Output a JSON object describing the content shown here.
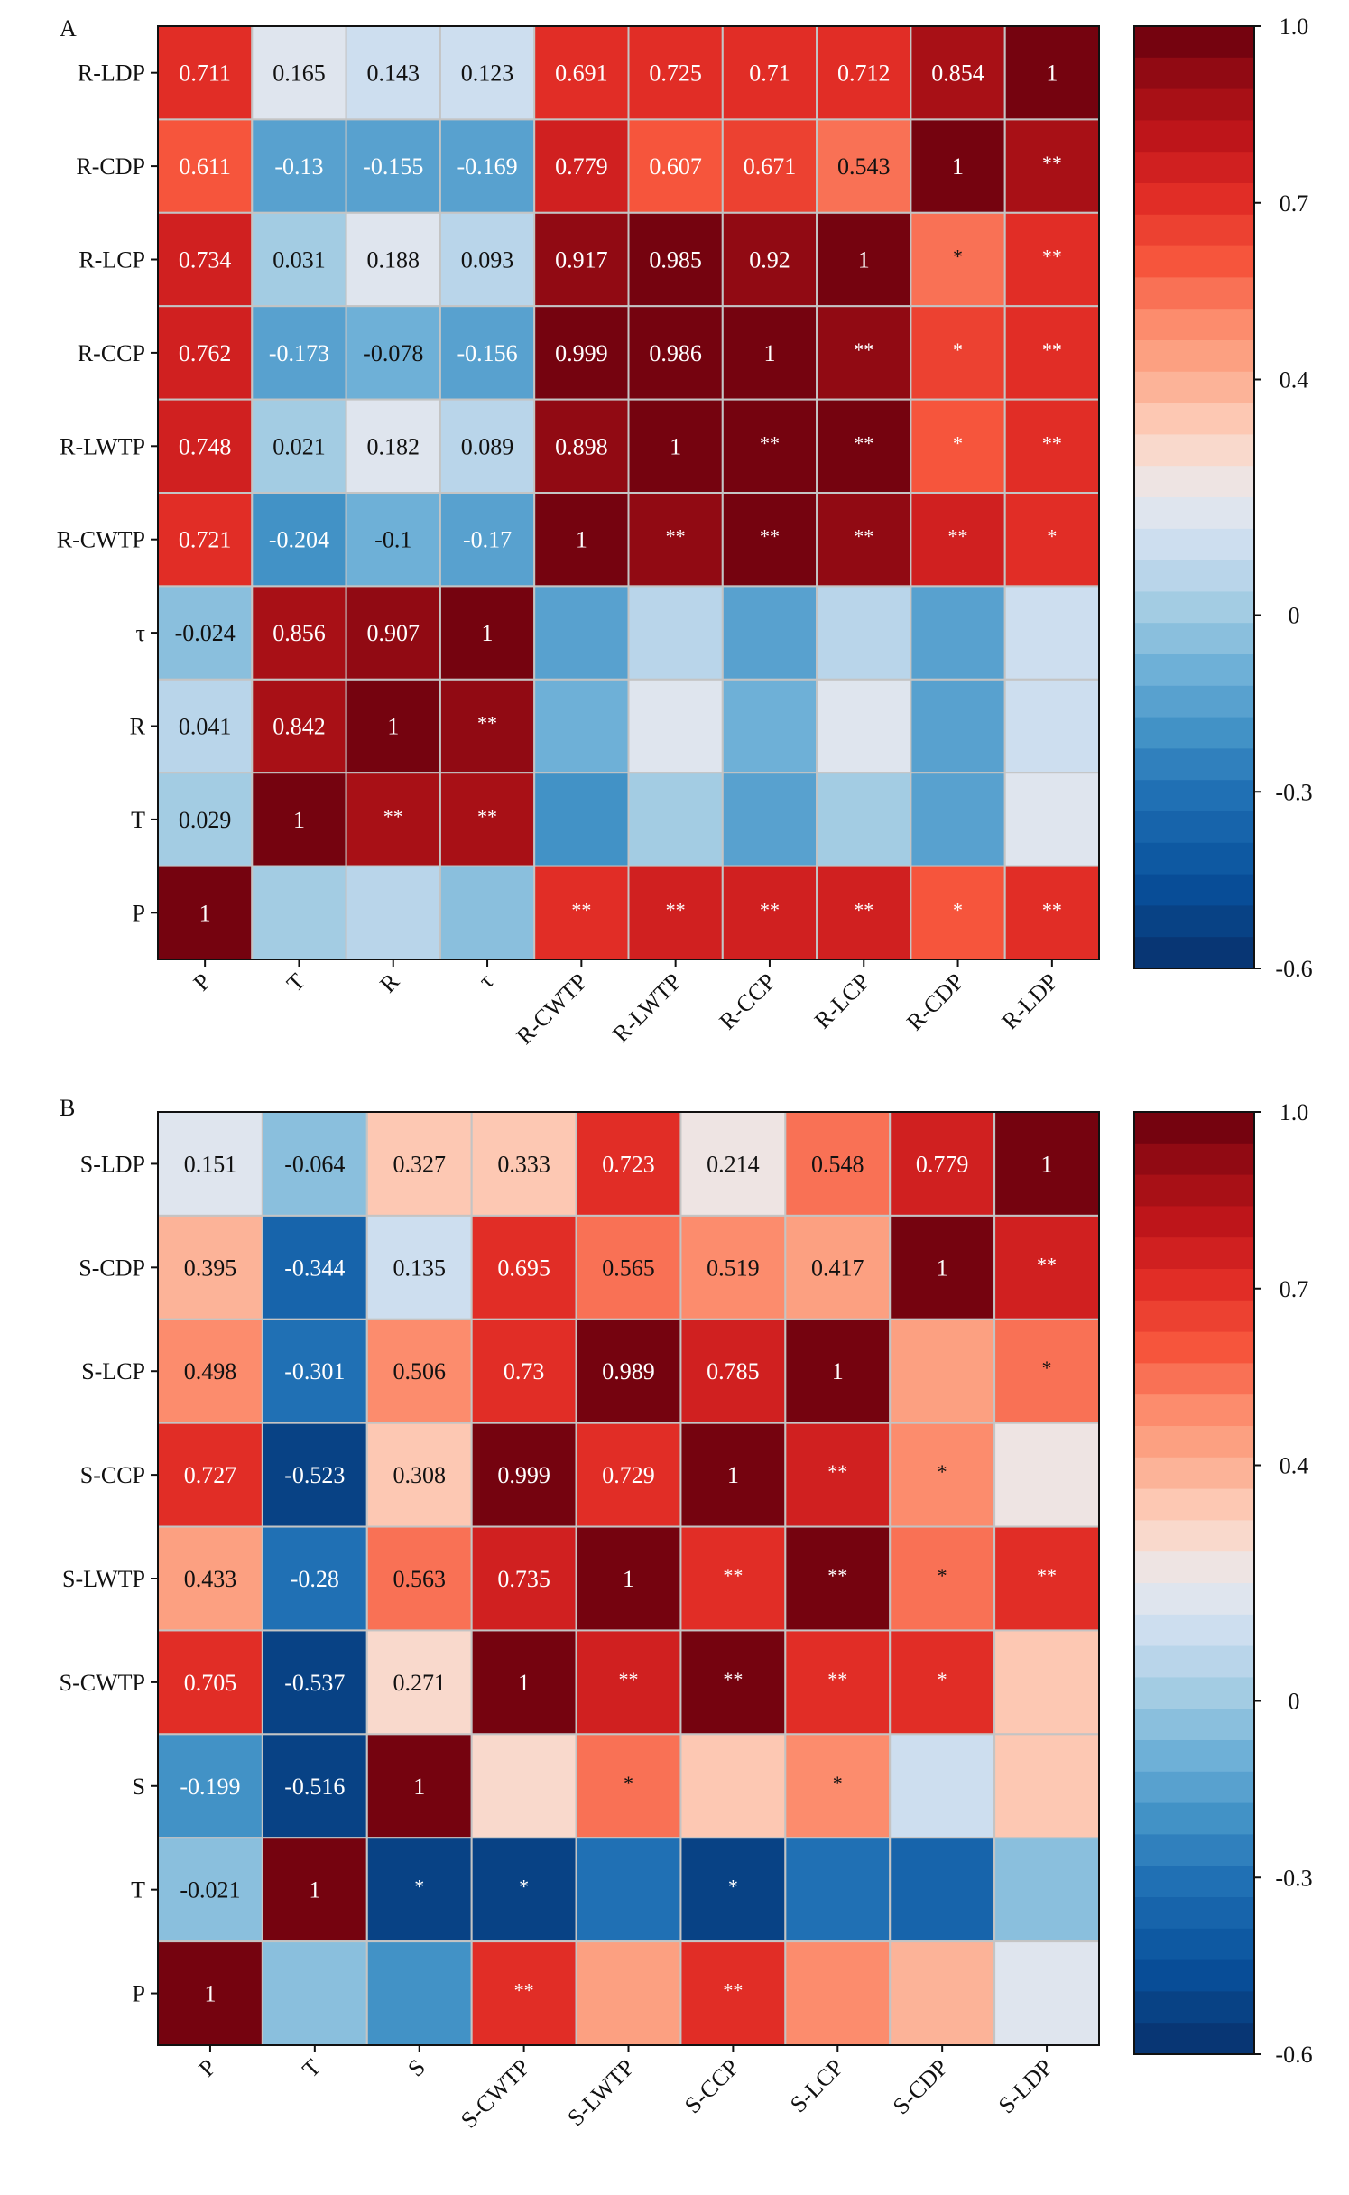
{
  "colorbar": {
    "min": -0.6,
    "max": 1.0,
    "steps": 30,
    "tick_labels": [
      "1.0",
      "0.7",
      "0.4",
      "0",
      "-0.3",
      "-0.6"
    ],
    "tick_values": [
      1.0,
      0.7,
      0.4,
      0.0,
      -0.3,
      -0.6
    ],
    "color_stops": [
      {
        "v": -0.6,
        "c": "#08306b"
      },
      {
        "v": -0.45,
        "c": "#08519c"
      },
      {
        "v": -0.3,
        "c": "#2171b5"
      },
      {
        "v": -0.2,
        "c": "#4292c6"
      },
      {
        "v": -0.1,
        "c": "#6baed6"
      },
      {
        "v": 0.0,
        "c": "#9ecae1"
      },
      {
        "v": 0.1,
        "c": "#c6dbef"
      },
      {
        "v": 0.2,
        "c": "#e8e9ee"
      },
      {
        "v": 0.3,
        "c": "#fdd5c4"
      },
      {
        "v": 0.4,
        "c": "#fcae91"
      },
      {
        "v": 0.5,
        "c": "#fc8a6a"
      },
      {
        "v": 0.6,
        "c": "#f6553c"
      },
      {
        "v": 0.7,
        "c": "#e32f27"
      },
      {
        "v": 0.8,
        "c": "#c3161b"
      },
      {
        "v": 0.9,
        "c": "#9b0d14"
      },
      {
        "v": 1.0,
        "c": "#67000d"
      }
    ]
  },
  "chart_data": [
    {
      "type": "heatmap",
      "panel_label": "A",
      "x_labels": [
        "P",
        "T",
        "R",
        "τ",
        "R-CWTP",
        "R-LWTP",
        "R-CCP",
        "R-LCP",
        "R-CDP",
        "R-LDP"
      ],
      "y_labels": [
        "R-LDP",
        "R-CDP",
        "R-LCP",
        "R-CCP",
        "R-LWTP",
        "R-CWTP",
        "τ",
        "R",
        "T",
        "P"
      ],
      "cells": [
        [
          {
            "v": 0.711,
            "label": "0.711"
          },
          {
            "v": 0.165,
            "label": "0.165"
          },
          {
            "v": 0.143,
            "label": "0.143"
          },
          {
            "v": 0.123,
            "label": "0.123"
          },
          {
            "v": 0.691,
            "label": "0.691"
          },
          {
            "v": 0.725,
            "label": "0.725"
          },
          {
            "v": 0.71,
            "label": "0.71"
          },
          {
            "v": 0.712,
            "label": "0.712"
          },
          {
            "v": 0.854,
            "label": "0.854"
          },
          {
            "v": 1,
            "label": "1"
          }
        ],
        [
          {
            "v": 0.611,
            "label": "0.611"
          },
          {
            "v": -0.13,
            "label": "-0.13"
          },
          {
            "v": -0.155,
            "label": "-0.155"
          },
          {
            "v": -0.169,
            "label": "-0.169"
          },
          {
            "v": 0.779,
            "label": "0.779"
          },
          {
            "v": 0.607,
            "label": "0.607"
          },
          {
            "v": 0.671,
            "label": "0.671"
          },
          {
            "v": 0.543,
            "label": "0.543"
          },
          {
            "v": 1,
            "label": "1"
          },
          {
            "v": 0.854,
            "label": "**"
          }
        ],
        [
          {
            "v": 0.734,
            "label": "0.734"
          },
          {
            "v": 0.031,
            "label": "0.031"
          },
          {
            "v": 0.188,
            "label": "0.188"
          },
          {
            "v": 0.093,
            "label": "0.093"
          },
          {
            "v": 0.917,
            "label": "0.917"
          },
          {
            "v": 0.985,
            "label": "0.985"
          },
          {
            "v": 0.92,
            "label": "0.92"
          },
          {
            "v": 1,
            "label": "1"
          },
          {
            "v": 0.543,
            "label": "*"
          },
          {
            "v": 0.712,
            "label": "**"
          }
        ],
        [
          {
            "v": 0.762,
            "label": "0.762"
          },
          {
            "v": -0.173,
            "label": "-0.173"
          },
          {
            "v": -0.078,
            "label": "-0.078"
          },
          {
            "v": -0.156,
            "label": "-0.156"
          },
          {
            "v": 0.999,
            "label": "0.999"
          },
          {
            "v": 0.986,
            "label": "0.986"
          },
          {
            "v": 1,
            "label": "1"
          },
          {
            "v": 0.92,
            "label": "**"
          },
          {
            "v": 0.671,
            "label": "*"
          },
          {
            "v": 0.71,
            "label": "**"
          }
        ],
        [
          {
            "v": 0.748,
            "label": "0.748"
          },
          {
            "v": 0.021,
            "label": "0.021"
          },
          {
            "v": 0.182,
            "label": "0.182"
          },
          {
            "v": 0.089,
            "label": "0.089"
          },
          {
            "v": 0.898,
            "label": "0.898"
          },
          {
            "v": 1,
            "label": "1"
          },
          {
            "v": 0.986,
            "label": "**"
          },
          {
            "v": 0.985,
            "label": "**"
          },
          {
            "v": 0.607,
            "label": "*"
          },
          {
            "v": 0.725,
            "label": "**"
          }
        ],
        [
          {
            "v": 0.721,
            "label": "0.721"
          },
          {
            "v": -0.204,
            "label": "-0.204"
          },
          {
            "v": -0.1,
            "label": "-0.1"
          },
          {
            "v": -0.17,
            "label": "-0.17"
          },
          {
            "v": 1,
            "label": "1"
          },
          {
            "v": 0.898,
            "label": "**"
          },
          {
            "v": 0.999,
            "label": "**"
          },
          {
            "v": 0.917,
            "label": "**"
          },
          {
            "v": 0.779,
            "label": "**"
          },
          {
            "v": 0.691,
            "label": "*"
          }
        ],
        [
          {
            "v": -0.024,
            "label": "-0.024"
          },
          {
            "v": 0.856,
            "label": "0.856"
          },
          {
            "v": 0.907,
            "label": "0.907"
          },
          {
            "v": 1,
            "label": "1"
          },
          {
            "v": -0.17,
            "label": ""
          },
          {
            "v": 0.089,
            "label": ""
          },
          {
            "v": -0.156,
            "label": ""
          },
          {
            "v": 0.093,
            "label": ""
          },
          {
            "v": -0.169,
            "label": ""
          },
          {
            "v": 0.123,
            "label": ""
          }
        ],
        [
          {
            "v": 0.041,
            "label": "0.041"
          },
          {
            "v": 0.842,
            "label": "0.842"
          },
          {
            "v": 1,
            "label": "1"
          },
          {
            "v": 0.907,
            "label": "**"
          },
          {
            "v": -0.1,
            "label": ""
          },
          {
            "v": 0.182,
            "label": ""
          },
          {
            "v": -0.078,
            "label": ""
          },
          {
            "v": 0.188,
            "label": ""
          },
          {
            "v": -0.155,
            "label": ""
          },
          {
            "v": 0.143,
            "label": ""
          }
        ],
        [
          {
            "v": 0.029,
            "label": "0.029"
          },
          {
            "v": 1,
            "label": "1"
          },
          {
            "v": 0.842,
            "label": "**"
          },
          {
            "v": 0.856,
            "label": "**"
          },
          {
            "v": -0.204,
            "label": ""
          },
          {
            "v": 0.021,
            "label": ""
          },
          {
            "v": -0.173,
            "label": ""
          },
          {
            "v": 0.031,
            "label": ""
          },
          {
            "v": -0.13,
            "label": ""
          },
          {
            "v": 0.165,
            "label": ""
          }
        ],
        [
          {
            "v": 1,
            "label": "1"
          },
          {
            "v": 0.029,
            "label": ""
          },
          {
            "v": 0.041,
            "label": ""
          },
          {
            "v": -0.024,
            "label": ""
          },
          {
            "v": 0.721,
            "label": "**"
          },
          {
            "v": 0.748,
            "label": "**"
          },
          {
            "v": 0.762,
            "label": "**"
          },
          {
            "v": 0.734,
            "label": "**"
          },
          {
            "v": 0.611,
            "label": "*"
          },
          {
            "v": 0.711,
            "label": "**"
          }
        ]
      ]
    },
    {
      "type": "heatmap",
      "panel_label": "B",
      "x_labels": [
        "P",
        "T",
        "S",
        "S-CWTP",
        "S-LWTP",
        "S-CCP",
        "S-LCP",
        "S-CDP",
        "S-LDP"
      ],
      "y_labels": [
        "S-LDP",
        "S-CDP",
        "S-LCP",
        "S-CCP",
        "S-LWTP",
        "S-CWTP",
        "S",
        "T",
        "P"
      ],
      "cells": [
        [
          {
            "v": 0.151,
            "label": "0.151"
          },
          {
            "v": -0.064,
            "label": "-0.064"
          },
          {
            "v": 0.327,
            "label": "0.327"
          },
          {
            "v": 0.333,
            "label": "0.333"
          },
          {
            "v": 0.723,
            "label": "0.723"
          },
          {
            "v": 0.214,
            "label": "0.214"
          },
          {
            "v": 0.548,
            "label": "0.548"
          },
          {
            "v": 0.779,
            "label": "0.779"
          },
          {
            "v": 1,
            "label": "1"
          }
        ],
        [
          {
            "v": 0.395,
            "label": "0.395"
          },
          {
            "v": -0.344,
            "label": "-0.344"
          },
          {
            "v": 0.135,
            "label": "0.135"
          },
          {
            "v": 0.695,
            "label": "0.695"
          },
          {
            "v": 0.565,
            "label": "0.565"
          },
          {
            "v": 0.519,
            "label": "0.519"
          },
          {
            "v": 0.417,
            "label": "0.417"
          },
          {
            "v": 1,
            "label": "1"
          },
          {
            "v": 0.779,
            "label": "**"
          }
        ],
        [
          {
            "v": 0.498,
            "label": "0.498"
          },
          {
            "v": -0.301,
            "label": "-0.301"
          },
          {
            "v": 0.506,
            "label": "0.506"
          },
          {
            "v": 0.73,
            "label": "0.73"
          },
          {
            "v": 0.989,
            "label": "0.989"
          },
          {
            "v": 0.785,
            "label": "0.785"
          },
          {
            "v": 1,
            "label": "1"
          },
          {
            "v": 0.417,
            "label": ""
          },
          {
            "v": 0.548,
            "label": "*"
          }
        ],
        [
          {
            "v": 0.727,
            "label": "0.727"
          },
          {
            "v": -0.523,
            "label": "-0.523"
          },
          {
            "v": 0.308,
            "label": "0.308"
          },
          {
            "v": 0.999,
            "label": "0.999"
          },
          {
            "v": 0.729,
            "label": "0.729"
          },
          {
            "v": 1,
            "label": "1"
          },
          {
            "v": 0.785,
            "label": "**"
          },
          {
            "v": 0.519,
            "label": "*"
          },
          {
            "v": 0.214,
            "label": ""
          }
        ],
        [
          {
            "v": 0.433,
            "label": "0.433"
          },
          {
            "v": -0.28,
            "label": "-0.28"
          },
          {
            "v": 0.563,
            "label": "0.563"
          },
          {
            "v": 0.735,
            "label": "0.735"
          },
          {
            "v": 1,
            "label": "1"
          },
          {
            "v": 0.729,
            "label": "**"
          },
          {
            "v": 0.989,
            "label": "**"
          },
          {
            "v": 0.565,
            "label": "*"
          },
          {
            "v": 0.723,
            "label": "**"
          }
        ],
        [
          {
            "v": 0.705,
            "label": "0.705"
          },
          {
            "v": -0.537,
            "label": "-0.537"
          },
          {
            "v": 0.271,
            "label": "0.271"
          },
          {
            "v": 1,
            "label": "1"
          },
          {
            "v": 0.735,
            "label": "**"
          },
          {
            "v": 0.999,
            "label": "**"
          },
          {
            "v": 0.73,
            "label": "**"
          },
          {
            "v": 0.695,
            "label": "*"
          },
          {
            "v": 0.333,
            "label": ""
          }
        ],
        [
          {
            "v": -0.199,
            "label": "-0.199"
          },
          {
            "v": -0.516,
            "label": "-0.516"
          },
          {
            "v": 1,
            "label": "1"
          },
          {
            "v": 0.271,
            "label": ""
          },
          {
            "v": 0.563,
            "label": "*"
          },
          {
            "v": 0.308,
            "label": ""
          },
          {
            "v": 0.506,
            "label": "*"
          },
          {
            "v": 0.135,
            "label": ""
          },
          {
            "v": 0.327,
            "label": ""
          }
        ],
        [
          {
            "v": -0.021,
            "label": "-0.021"
          },
          {
            "v": 1,
            "label": "1"
          },
          {
            "v": -0.516,
            "label": "*"
          },
          {
            "v": -0.537,
            "label": "*"
          },
          {
            "v": -0.28,
            "label": ""
          },
          {
            "v": -0.523,
            "label": "*"
          },
          {
            "v": -0.301,
            "label": ""
          },
          {
            "v": -0.344,
            "label": ""
          },
          {
            "v": -0.064,
            "label": ""
          }
        ],
        [
          {
            "v": 1,
            "label": "1"
          },
          {
            "v": -0.021,
            "label": ""
          },
          {
            "v": -0.199,
            "label": ""
          },
          {
            "v": 0.705,
            "label": "**"
          },
          {
            "v": 0.433,
            "label": ""
          },
          {
            "v": 0.727,
            "label": "**"
          },
          {
            "v": 0.498,
            "label": ""
          },
          {
            "v": 0.395,
            "label": ""
          },
          {
            "v": 0.151,
            "label": ""
          }
        ]
      ]
    }
  ]
}
